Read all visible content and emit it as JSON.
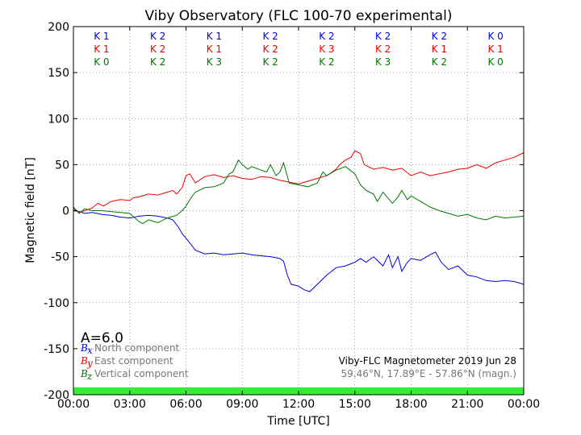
{
  "chart_data": {
    "type": "line",
    "title": "Viby Observatory (FLC 100-70 experimental)",
    "xlabel": "Time [UTC]",
    "ylabel": "Magnetic field [nT]",
    "xlim": [
      0,
      24
    ],
    "ylim": [
      -200,
      200
    ],
    "x_tick_labels": [
      "00:00",
      "03:00",
      "06:00",
      "09:00",
      "12:00",
      "15:00",
      "18:00",
      "21:00",
      "00:00"
    ],
    "y_ticks": [
      200,
      150,
      100,
      50,
      0,
      -50,
      -100,
      -150,
      -200
    ],
    "grid": true,
    "activity_index": "A=6.0",
    "k_indices": {
      "x": [
        "K 1",
        "K 2",
        "K 1",
        "K 2",
        "K 2",
        "K 2",
        "K 2",
        "K 0"
      ],
      "y": [
        "K 1",
        "K 2",
        "K 1",
        "K 2",
        "K 3",
        "K 2",
        "K 1",
        "K 1"
      ],
      "z": [
        "K 0",
        "K 2",
        "K 3",
        "K 2",
        "K 2",
        "K 3",
        "K 2",
        "K 0"
      ]
    },
    "legend": {
      "placement": "bottom-left",
      "entries": [
        {
          "symbol": "B",
          "sub": "x",
          "text": "North component",
          "color": "#0000dd"
        },
        {
          "symbol": "B",
          "sub": "y",
          "text": "East component",
          "color": "#ee0000"
        },
        {
          "symbol": "B",
          "sub": "z",
          "text": "Vertical component",
          "color": "#007700"
        }
      ]
    },
    "info_line1": "Viby-FLC Magnetometer 2019 Jun 28",
    "info_line2": "59.46°N, 17.89°E - 57.86°N (magn.)",
    "status_bar_color": "#33ee33",
    "series": [
      {
        "key": "x",
        "color": "#0000dd",
        "x": [
          0,
          0.3,
          0.6,
          1,
          1.5,
          2,
          2.5,
          3,
          3.5,
          4,
          4.5,
          5,
          5.3,
          5.6,
          5.8,
          6,
          6.2,
          6.5,
          7,
          7.5,
          8,
          8.5,
          9,
          9.5,
          10,
          10.5,
          11,
          11.2,
          11.4,
          11.6,
          12,
          12.3,
          12.6,
          13,
          13.5,
          14,
          14.5,
          15,
          15.3,
          15.6,
          16,
          16.5,
          16.8,
          17,
          17.3,
          17.5,
          17.8,
          18,
          18.5,
          19,
          19.3,
          19.6,
          20,
          20.5,
          21,
          21.5,
          22,
          22.5,
          23,
          23.5,
          24
        ],
        "values": [
          0,
          -1,
          -3,
          -2,
          -4,
          -5,
          -7,
          -8,
          -6,
          -5,
          -6,
          -8,
          -10,
          -18,
          -25,
          -30,
          -35,
          -43,
          -47,
          -46,
          -48,
          -47,
          -46,
          -48,
          -49,
          -50,
          -52,
          -55,
          -70,
          -80,
          -82,
          -86,
          -88,
          -80,
          -70,
          -62,
          -60,
          -56,
          -52,
          -56,
          -50,
          -60,
          -48,
          -62,
          -50,
          -66,
          -56,
          -52,
          -54,
          -48,
          -45,
          -56,
          -64,
          -60,
          -70,
          -72,
          -76,
          -77,
          -76,
          -77,
          -80
        ]
      },
      {
        "key": "y",
        "color": "#ee0000",
        "x": [
          0,
          0.3,
          0.6,
          1,
          1.3,
          1.6,
          2,
          2.5,
          3,
          3.2,
          3.5,
          4,
          4.5,
          5,
          5.3,
          5.5,
          5.8,
          6,
          6.2,
          6.5,
          7,
          7.5,
          8,
          8.5,
          9,
          9.5,
          10,
          10.5,
          11,
          11.5,
          12,
          12.5,
          13,
          13.5,
          14,
          14.2,
          14.5,
          14.8,
          15,
          15.3,
          15.5,
          16,
          16.5,
          17,
          17.5,
          18,
          18.5,
          19,
          19.5,
          20,
          20.5,
          21,
          21.5,
          22,
          22.5,
          23,
          23.5,
          24
        ],
        "values": [
          2,
          -2,
          0,
          3,
          8,
          5,
          10,
          12,
          11,
          14,
          15,
          18,
          17,
          20,
          22,
          18,
          25,
          38,
          40,
          30,
          37,
          39,
          36,
          38,
          35,
          34,
          37,
          36,
          33,
          31,
          29,
          32,
          35,
          38,
          45,
          50,
          55,
          58,
          65,
          62,
          50,
          45,
          47,
          44,
          46,
          38,
          42,
          38,
          40,
          42,
          45,
          46,
          50,
          46,
          52,
          55,
          58,
          63
        ]
      },
      {
        "key": "z",
        "color": "#007700",
        "x": [
          0,
          0.3,
          0.6,
          1,
          1.5,
          2,
          2.5,
          3,
          3.5,
          3.7,
          4,
          4.5,
          5,
          5.5,
          5.8,
          6,
          6.3,
          6.5,
          7,
          7.5,
          8,
          8.3,
          8.5,
          8.8,
          9,
          9.3,
          9.5,
          10,
          10.3,
          10.5,
          10.8,
          11,
          11.2,
          11.5,
          12,
          12.5,
          13,
          13.3,
          13.5,
          14,
          14.5,
          15,
          15.3,
          15.6,
          16,
          16.2,
          16.5,
          17,
          17.3,
          17.5,
          17.8,
          18,
          18.5,
          19,
          19.5,
          20,
          20.5,
          21,
          21.5,
          22,
          22.5,
          23,
          23.5,
          24
        ],
        "values": [
          4,
          -3,
          2,
          0,
          0,
          -1,
          -2,
          -3,
          -12,
          -14,
          -10,
          -13,
          -8,
          -5,
          0,
          5,
          15,
          20,
          25,
          26,
          30,
          40,
          42,
          55,
          50,
          45,
          48,
          44,
          42,
          50,
          38,
          42,
          52,
          30,
          28,
          26,
          30,
          42,
          38,
          44,
          48,
          40,
          28,
          22,
          18,
          10,
          20,
          8,
          15,
          22,
          12,
          16,
          10,
          4,
          0,
          -3,
          -6,
          -4,
          -8,
          -10,
          -6,
          -8,
          -7,
          -6
        ]
      }
    ]
  }
}
